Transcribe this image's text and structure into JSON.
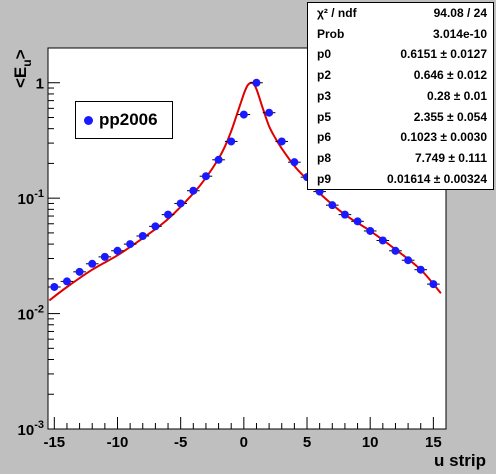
{
  "chart_data": {
    "type": "scatter",
    "xlabel": "u strip",
    "ylabel": "<E",
    "ylabel_sub": "u",
    "ylabel_close": ">",
    "xlim": [
      -15.5,
      16.0
    ],
    "ylim": [
      0.001,
      2.0
    ],
    "yscale": "log",
    "x_ticks": [
      "-15",
      "-10",
      "-5",
      "0",
      "5",
      "10",
      "15"
    ],
    "y_ticks": [
      {
        "base": "1",
        "exp": ""
      },
      {
        "base": "10",
        "exp": "-1"
      },
      {
        "base": "10",
        "exp": "-2"
      },
      {
        "base": "10",
        "exp": "-3"
      }
    ],
    "grid": false,
    "legend_position": "top-left",
    "series": [
      {
        "name": "pp2006",
        "color": "#1a1aff",
        "x": [
          -15,
          -14,
          -13,
          -12,
          -11,
          -10,
          -9,
          -8,
          -7,
          -6,
          -5,
          -4,
          -3,
          -2,
          -1,
          0,
          1,
          2,
          3,
          4,
          5,
          6,
          7,
          8,
          9,
          10,
          11,
          12,
          13,
          14,
          15
        ],
        "y": [
          0.017,
          0.019,
          0.023,
          0.027,
          0.031,
          0.035,
          0.04,
          0.047,
          0.057,
          0.072,
          0.09,
          0.116,
          0.155,
          0.215,
          0.31,
          0.53,
          1.0,
          0.55,
          0.31,
          0.205,
          0.152,
          0.114,
          0.087,
          0.072,
          0.063,
          0.052,
          0.043,
          0.035,
          0.029,
          0.024,
          0.018
        ]
      }
    ],
    "fit_color": "#e00000",
    "fit_curve": {
      "x": [
        -15.4,
        -14,
        -12,
        -10,
        -8,
        -6,
        -4,
        -3,
        -2,
        -1.5,
        -1,
        -0.5,
        0,
        0.3,
        0.6,
        0.8,
        1.0,
        1.2,
        1.5,
        2,
        2.5,
        3,
        4,
        5,
        6,
        8,
        10,
        12,
        14,
        15.6
      ],
      "y": [
        0.013,
        0.017,
        0.024,
        0.032,
        0.045,
        0.066,
        0.11,
        0.15,
        0.22,
        0.28,
        0.38,
        0.55,
        0.8,
        0.95,
        1.0,
        0.97,
        0.88,
        0.76,
        0.6,
        0.42,
        0.33,
        0.27,
        0.19,
        0.145,
        0.11,
        0.072,
        0.052,
        0.036,
        0.024,
        0.015
      ]
    },
    "fit_stats": [
      {
        "key": "χ² / ndf",
        "value": "94.08 / 24"
      },
      {
        "key": "Prob",
        "value": "3.014e-10"
      },
      {
        "key": "p0",
        "value": "0.6151 ± 0.0127"
      },
      {
        "key": "p2",
        "value": "0.646 ± 0.012"
      },
      {
        "key": "p3",
        "value": "0.28 ± 0.01"
      },
      {
        "key": "p5",
        "value": "2.355 ± 0.054"
      },
      {
        "key": "p6",
        "value": "0.1023 ± 0.0030"
      },
      {
        "key": "p8",
        "value": "7.749 ± 0.111"
      },
      {
        "key": "p9",
        "value": "0.01614 ± 0.00324"
      }
    ]
  }
}
